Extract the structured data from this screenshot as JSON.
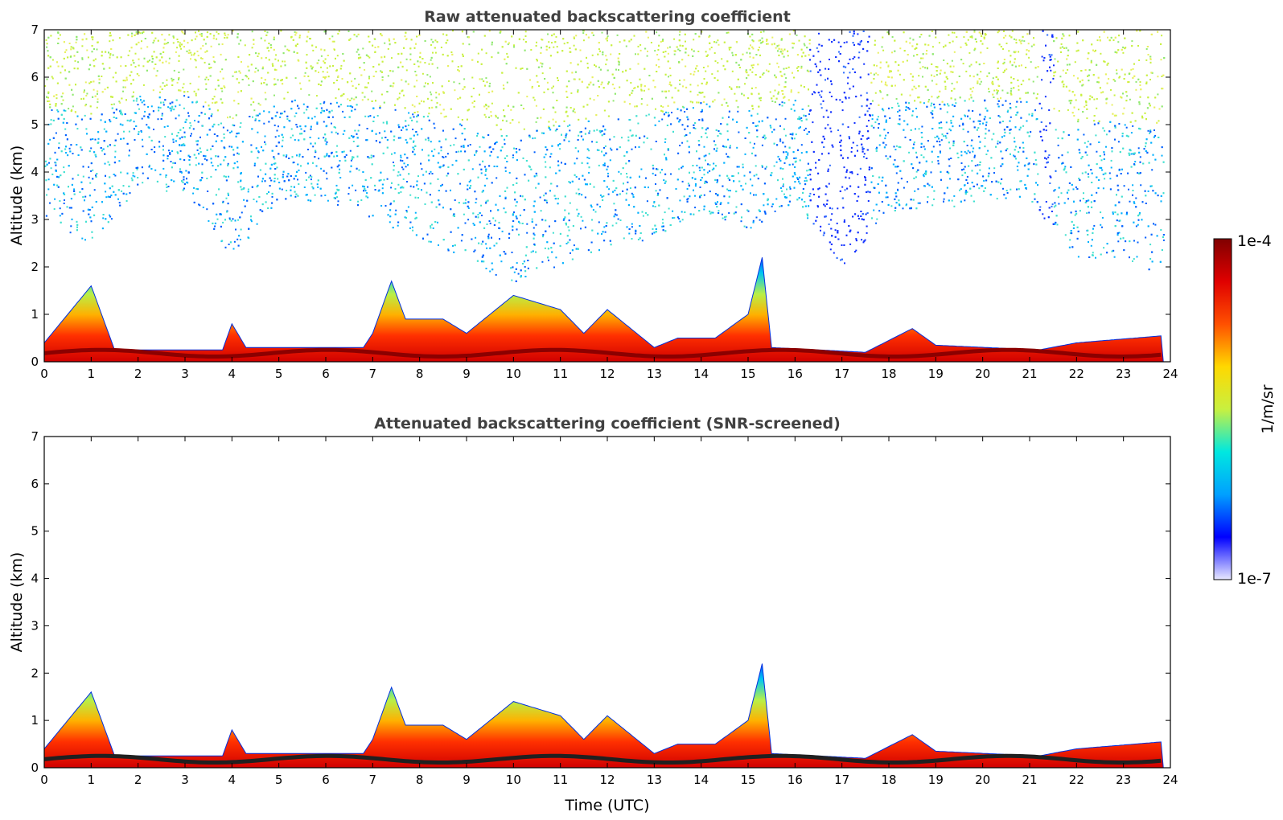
{
  "chart_data": [
    {
      "type": "heatmap",
      "title": "Raw attenuated backscattering coefficient",
      "xlabel": "",
      "ylabel": "Altitude (km)",
      "xlim": [
        0,
        24
      ],
      "ylim": [
        0,
        7
      ],
      "xticks": [
        "0",
        "1",
        "2",
        "3",
        "4",
        "5",
        "6",
        "7",
        "8",
        "9",
        "10",
        "11",
        "12",
        "13",
        "14",
        "15",
        "16",
        "17",
        "18",
        "19",
        "20",
        "21",
        "22",
        "23",
        "24"
      ],
      "yticks": [
        "0",
        "1",
        "2",
        "3",
        "4",
        "5",
        "6",
        "7"
      ],
      "grid": false,
      "noise_floor": [
        {
          "x": 0,
          "km": 3.0
        },
        {
          "x": 1,
          "km": 2.5
        },
        {
          "x": 2,
          "km": 3.6
        },
        {
          "x": 3,
          "km": 3.6
        },
        {
          "x": 4,
          "km": 2.2
        },
        {
          "x": 5,
          "km": 3.4
        },
        {
          "x": 6,
          "km": 3.4
        },
        {
          "x": 7,
          "km": 3.0
        },
        {
          "x": 8,
          "km": 2.6
        },
        {
          "x": 9,
          "km": 2.2
        },
        {
          "x": 10,
          "km": 1.6
        },
        {
          "x": 11,
          "km": 2.0
        },
        {
          "x": 12,
          "km": 2.4
        },
        {
          "x": 13,
          "km": 2.6
        },
        {
          "x": 14,
          "km": 3.2
        },
        {
          "x": 15,
          "km": 2.8
        },
        {
          "x": 16,
          "km": 3.4
        },
        {
          "x": 17,
          "km": 2.0
        },
        {
          "x": 18,
          "km": 3.2
        },
        {
          "x": 19,
          "km": 3.2
        },
        {
          "x": 20,
          "km": 3.4
        },
        {
          "x": 21,
          "km": 3.4
        },
        {
          "x": 22,
          "km": 2.2
        },
        {
          "x": 23,
          "km": 2.2
        },
        {
          "x": 23.85,
          "km": 1.8
        }
      ],
      "boundary_layer_top_km": [
        {
          "x": 0,
          "km": 0.4
        },
        {
          "x": 1,
          "km": 1.6
        },
        {
          "x": 1.5,
          "km": 0.25
        },
        {
          "x": 3.8,
          "km": 0.25
        },
        {
          "x": 4,
          "km": 0.8
        },
        {
          "x": 4.3,
          "km": 0.3
        },
        {
          "x": 6.8,
          "km": 0.3
        },
        {
          "x": 7,
          "km": 0.6
        },
        {
          "x": 7.4,
          "km": 1.7
        },
        {
          "x": 7.7,
          "km": 0.9
        },
        {
          "x": 8.5,
          "km": 0.9
        },
        {
          "x": 9,
          "km": 0.6
        },
        {
          "x": 10,
          "km": 1.4
        },
        {
          "x": 11,
          "km": 1.1
        },
        {
          "x": 11.5,
          "km": 0.6
        },
        {
          "x": 12,
          "km": 1.1
        },
        {
          "x": 13,
          "km": 0.3
        },
        {
          "x": 13.5,
          "km": 0.5
        },
        {
          "x": 14.3,
          "km": 0.5
        },
        {
          "x": 15,
          "km": 1.0
        },
        {
          "x": 15.3,
          "km": 2.2
        },
        {
          "x": 15.5,
          "km": 0.3
        },
        {
          "x": 17.5,
          "km": 0.2
        },
        {
          "x": 18.5,
          "km": 0.7
        },
        {
          "x": 19,
          "km": 0.35
        },
        {
          "x": 21.2,
          "km": 0.25
        },
        {
          "x": 22,
          "km": 0.4
        },
        {
          "x": 23.85,
          "km": 0.55
        }
      ]
    },
    {
      "type": "heatmap",
      "title": "Attenuated backscattering coefficient (SNR-screened)",
      "xlabel": "Time (UTC)",
      "ylabel": "Altitude (km)",
      "xlim": [
        0,
        24
      ],
      "ylim": [
        0,
        7
      ],
      "xticks": [
        "0",
        "1",
        "2",
        "3",
        "4",
        "5",
        "6",
        "7",
        "8",
        "9",
        "10",
        "11",
        "12",
        "13",
        "14",
        "15",
        "16",
        "17",
        "18",
        "19",
        "20",
        "21",
        "22",
        "23",
        "24"
      ],
      "yticks": [
        "0",
        "1",
        "2",
        "3",
        "4",
        "5",
        "6",
        "7"
      ],
      "grid": false
    }
  ],
  "colorbar": {
    "label": "1/m/sr",
    "max_label": "1e-4",
    "min_label": "1e-7",
    "colormap": "jet",
    "stops": [
      "#e8e8ff",
      "#0000ff",
      "#00a0ff",
      "#00e8e0",
      "#c8f040",
      "#ffd800",
      "#ff5000",
      "#e00000",
      "#800000"
    ]
  }
}
